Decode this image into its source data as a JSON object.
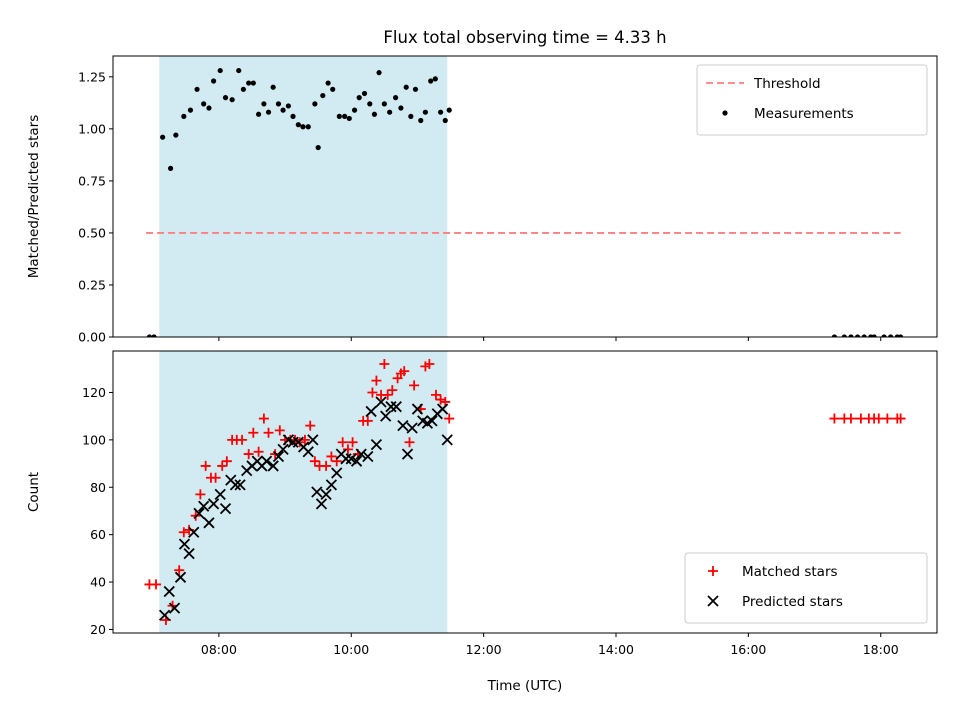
{
  "chart_data": {
    "type": "scatter",
    "title": "Flux total observing time = 4.33 h",
    "xlabel": "Time (UTC)",
    "xlim": [
      6.4,
      18.85
    ],
    "xticks": [
      8,
      10,
      12,
      14,
      16,
      18
    ],
    "xtick_labels": [
      "08:00",
      "10:00",
      "12:00",
      "14:00",
      "16:00",
      "18:00"
    ],
    "shaded_span": [
      7.1,
      11.45
    ],
    "shade_color": "#add8e6",
    "panels": [
      {
        "ylabel": "Matched/Predicted stars",
        "ylim": [
          0,
          1.35
        ],
        "yticks": [
          0.0,
          0.25,
          0.5,
          0.75,
          1.0,
          1.25
        ],
        "ytick_labels": [
          "0.00",
          "0.25",
          "0.50",
          "0.75",
          "1.00",
          "1.25"
        ],
        "legend": "top-right",
        "threshold": {
          "name": "Threshold",
          "y": 0.5,
          "x_range": [
            6.9,
            18.3
          ],
          "color": "#ff7f7f"
        },
        "series": [
          {
            "name": "Measurements",
            "color": "#000000",
            "points": [
              [
                6.95,
                0.0
              ],
              [
                7.02,
                0.0
              ],
              [
                7.15,
                0.96
              ],
              [
                7.27,
                0.81
              ],
              [
                7.35,
                0.97
              ],
              [
                7.47,
                1.06
              ],
              [
                7.57,
                1.09
              ],
              [
                7.67,
                1.19
              ],
              [
                7.77,
                1.12
              ],
              [
                7.85,
                1.1
              ],
              [
                7.92,
                1.23
              ],
              [
                8.02,
                1.28
              ],
              [
                8.1,
                1.15
              ],
              [
                8.2,
                1.14
              ],
              [
                8.3,
                1.28
              ],
              [
                8.37,
                1.19
              ],
              [
                8.45,
                1.22
              ],
              [
                8.52,
                1.22
              ],
              [
                8.6,
                1.07
              ],
              [
                8.68,
                1.12
              ],
              [
                8.75,
                1.08
              ],
              [
                8.82,
                1.2
              ],
              [
                8.9,
                1.12
              ],
              [
                8.97,
                1.09
              ],
              [
                9.05,
                1.11
              ],
              [
                9.12,
                1.06
              ],
              [
                9.2,
                1.02
              ],
              [
                9.27,
                1.01
              ],
              [
                9.35,
                1.01
              ],
              [
                9.45,
                1.12
              ],
              [
                9.5,
                0.91
              ],
              [
                9.57,
                1.16
              ],
              [
                9.65,
                1.22
              ],
              [
                9.72,
                1.19
              ],
              [
                9.82,
                1.06
              ],
              [
                9.9,
                1.06
              ],
              [
                9.97,
                1.05
              ],
              [
                10.05,
                1.09
              ],
              [
                10.12,
                1.15
              ],
              [
                10.2,
                1.17
              ],
              [
                10.28,
                1.12
              ],
              [
                10.35,
                1.07
              ],
              [
                10.42,
                1.27
              ],
              [
                10.5,
                1.12
              ],
              [
                10.58,
                1.08
              ],
              [
                10.67,
                1.15
              ],
              [
                10.75,
                1.1
              ],
              [
                10.83,
                1.2
              ],
              [
                10.9,
                1.06
              ],
              [
                10.97,
                1.19
              ],
              [
                11.05,
                1.04
              ],
              [
                11.12,
                1.08
              ],
              [
                11.2,
                1.23
              ],
              [
                11.27,
                1.24
              ],
              [
                11.35,
                1.08
              ],
              [
                11.42,
                1.04
              ],
              [
                11.48,
                1.09
              ],
              [
                17.3,
                0.0
              ],
              [
                17.45,
                0.0
              ],
              [
                17.55,
                0.0
              ],
              [
                17.65,
                0.0
              ],
              [
                17.75,
                0.0
              ],
              [
                17.85,
                0.0
              ],
              [
                17.9,
                0.0
              ],
              [
                18.05,
                0.0
              ],
              [
                18.15,
                0.0
              ],
              [
                18.25,
                0.0
              ],
              [
                18.3,
                0.0
              ]
            ]
          }
        ]
      },
      {
        "ylabel": "Count",
        "ylim": [
          18.5,
          137.5
        ],
        "yticks": [
          20,
          40,
          60,
          80,
          100,
          120
        ],
        "ytick_labels": [
          "20",
          "40",
          "60",
          "80",
          "100",
          "120"
        ],
        "legend": "bottom-right",
        "series": [
          {
            "name": "Matched stars",
            "color": "#ff0000",
            "marker": "plus",
            "points": [
              [
                6.95,
                39
              ],
              [
                7.05,
                39
              ],
              [
                7.2,
                24
              ],
              [
                7.3,
                30
              ],
              [
                7.4,
                45
              ],
              [
                7.47,
                61
              ],
              [
                7.55,
                62
              ],
              [
                7.65,
                68
              ],
              [
                7.72,
                77
              ],
              [
                7.8,
                89
              ],
              [
                7.88,
                84
              ],
              [
                7.95,
                84
              ],
              [
                8.05,
                89
              ],
              [
                8.12,
                91
              ],
              [
                8.2,
                100
              ],
              [
                8.27,
                100
              ],
              [
                8.35,
                100
              ],
              [
                8.45,
                94
              ],
              [
                8.52,
                103
              ],
              [
                8.6,
                95
              ],
              [
                8.68,
                109
              ],
              [
                8.75,
                103
              ],
              [
                8.85,
                94
              ],
              [
                8.92,
                104
              ],
              [
                9.0,
                100
              ],
              [
                9.08,
                100
              ],
              [
                9.15,
                100
              ],
              [
                9.22,
                99
              ],
              [
                9.3,
                100
              ],
              [
                9.38,
                106
              ],
              [
                9.45,
                91
              ],
              [
                9.52,
                89
              ],
              [
                9.62,
                89
              ],
              [
                9.7,
                93
              ],
              [
                9.78,
                91
              ],
              [
                9.87,
                99
              ],
              [
                9.95,
                96
              ],
              [
                10.02,
                99
              ],
              [
                10.1,
                94
              ],
              [
                10.18,
                108
              ],
              [
                10.25,
                108
              ],
              [
                10.32,
                120
              ],
              [
                10.38,
                125
              ],
              [
                10.45,
                119
              ],
              [
                10.5,
                132
              ],
              [
                10.55,
                119
              ],
              [
                10.62,
                121
              ],
              [
                10.7,
                126
              ],
              [
                10.75,
                128
              ],
              [
                10.8,
                129
              ],
              [
                10.88,
                99
              ],
              [
                10.95,
                123
              ],
              [
                11.05,
                113
              ],
              [
                11.12,
                131
              ],
              [
                11.18,
                132
              ],
              [
                11.28,
                119
              ],
              [
                11.35,
                117
              ],
              [
                11.42,
                116
              ],
              [
                11.48,
                109
              ],
              [
                17.3,
                109
              ],
              [
                17.45,
                109
              ],
              [
                17.55,
                109
              ],
              [
                17.7,
                109
              ],
              [
                17.82,
                109
              ],
              [
                17.9,
                109
              ],
              [
                17.97,
                109
              ],
              [
                18.1,
                109
              ],
              [
                18.25,
                109
              ],
              [
                18.3,
                109
              ]
            ]
          },
          {
            "name": "Predicted stars",
            "color": "#000000",
            "marker": "x",
            "points": [
              [
                7.18,
                26
              ],
              [
                7.25,
                36
              ],
              [
                7.33,
                29
              ],
              [
                7.42,
                42
              ],
              [
                7.48,
                56
              ],
              [
                7.55,
                52
              ],
              [
                7.62,
                61
              ],
              [
                7.7,
                69
              ],
              [
                7.77,
                72
              ],
              [
                7.85,
                65
              ],
              [
                7.92,
                73
              ],
              [
                8.02,
                77
              ],
              [
                8.1,
                71
              ],
              [
                8.18,
                83
              ],
              [
                8.25,
                81
              ],
              [
                8.32,
                81
              ],
              [
                8.42,
                87
              ],
              [
                8.5,
                89
              ],
              [
                8.58,
                91
              ],
              [
                8.65,
                89
              ],
              [
                8.72,
                91
              ],
              [
                8.82,
                89
              ],
              [
                8.9,
                93
              ],
              [
                8.97,
                96
              ],
              [
                9.05,
                100
              ],
              [
                9.12,
                99
              ],
              [
                9.2,
                99
              ],
              [
                9.28,
                97
              ],
              [
                9.35,
                95
              ],
              [
                9.42,
                100
              ],
              [
                9.48,
                78
              ],
              [
                9.55,
                73
              ],
              [
                9.62,
                77
              ],
              [
                9.7,
                81
              ],
              [
                9.78,
                86
              ],
              [
                9.85,
                94
              ],
              [
                9.92,
                92
              ],
              [
                10.0,
                92
              ],
              [
                10.08,
                91
              ],
              [
                10.15,
                94
              ],
              [
                10.25,
                93
              ],
              [
                10.3,
                112
              ],
              [
                10.38,
                98
              ],
              [
                10.45,
                116
              ],
              [
                10.52,
                110
              ],
              [
                10.6,
                114
              ],
              [
                10.68,
                114
              ],
              [
                10.78,
                106
              ],
              [
                10.85,
                94
              ],
              [
                10.92,
                105
              ],
              [
                11.0,
                113
              ],
              [
                11.08,
                108
              ],
              [
                11.15,
                107
              ],
              [
                11.22,
                108
              ],
              [
                11.3,
                111
              ],
              [
                11.38,
                113
              ],
              [
                11.45,
                100
              ]
            ]
          }
        ]
      }
    ]
  }
}
